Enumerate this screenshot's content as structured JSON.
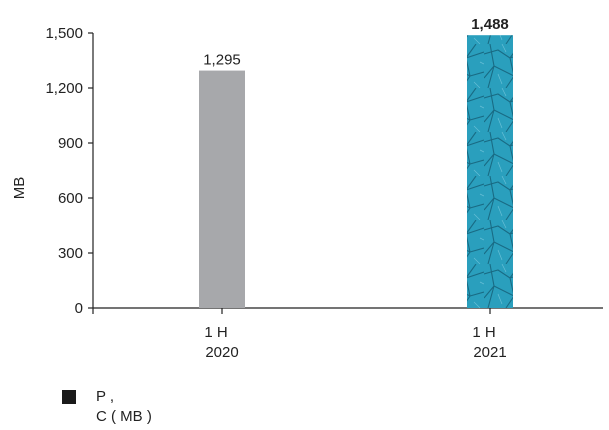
{
  "chart_data": {
    "type": "bar",
    "categories": [
      {
        "line1": "1 H",
        "line2": "2020"
      },
      {
        "line1": "1 H",
        "line2": "2021"
      }
    ],
    "values": [
      1295,
      1488
    ],
    "data_labels": [
      "1,295",
      "1,488"
    ],
    "ylabel": "MB",
    "ylim": [
      0,
      1500
    ],
    "yticks": [
      0,
      300,
      600,
      900,
      1200,
      1500
    ],
    "ytick_labels": [
      "0",
      "300",
      "600",
      "900",
      "1,200",
      "1,500"
    ],
    "grid": false,
    "legend_placement": "bottom-left",
    "colors": {
      "bar_2020": "#a7a8ab",
      "bar_2021": "#2a9fbd",
      "bar_2021_dark": "#1b6f86",
      "axis": "#222222",
      "legend_swatch": "#1a1a1a"
    }
  },
  "legend": {
    "line1": "P ,",
    "line2": "C ( MB )"
  }
}
